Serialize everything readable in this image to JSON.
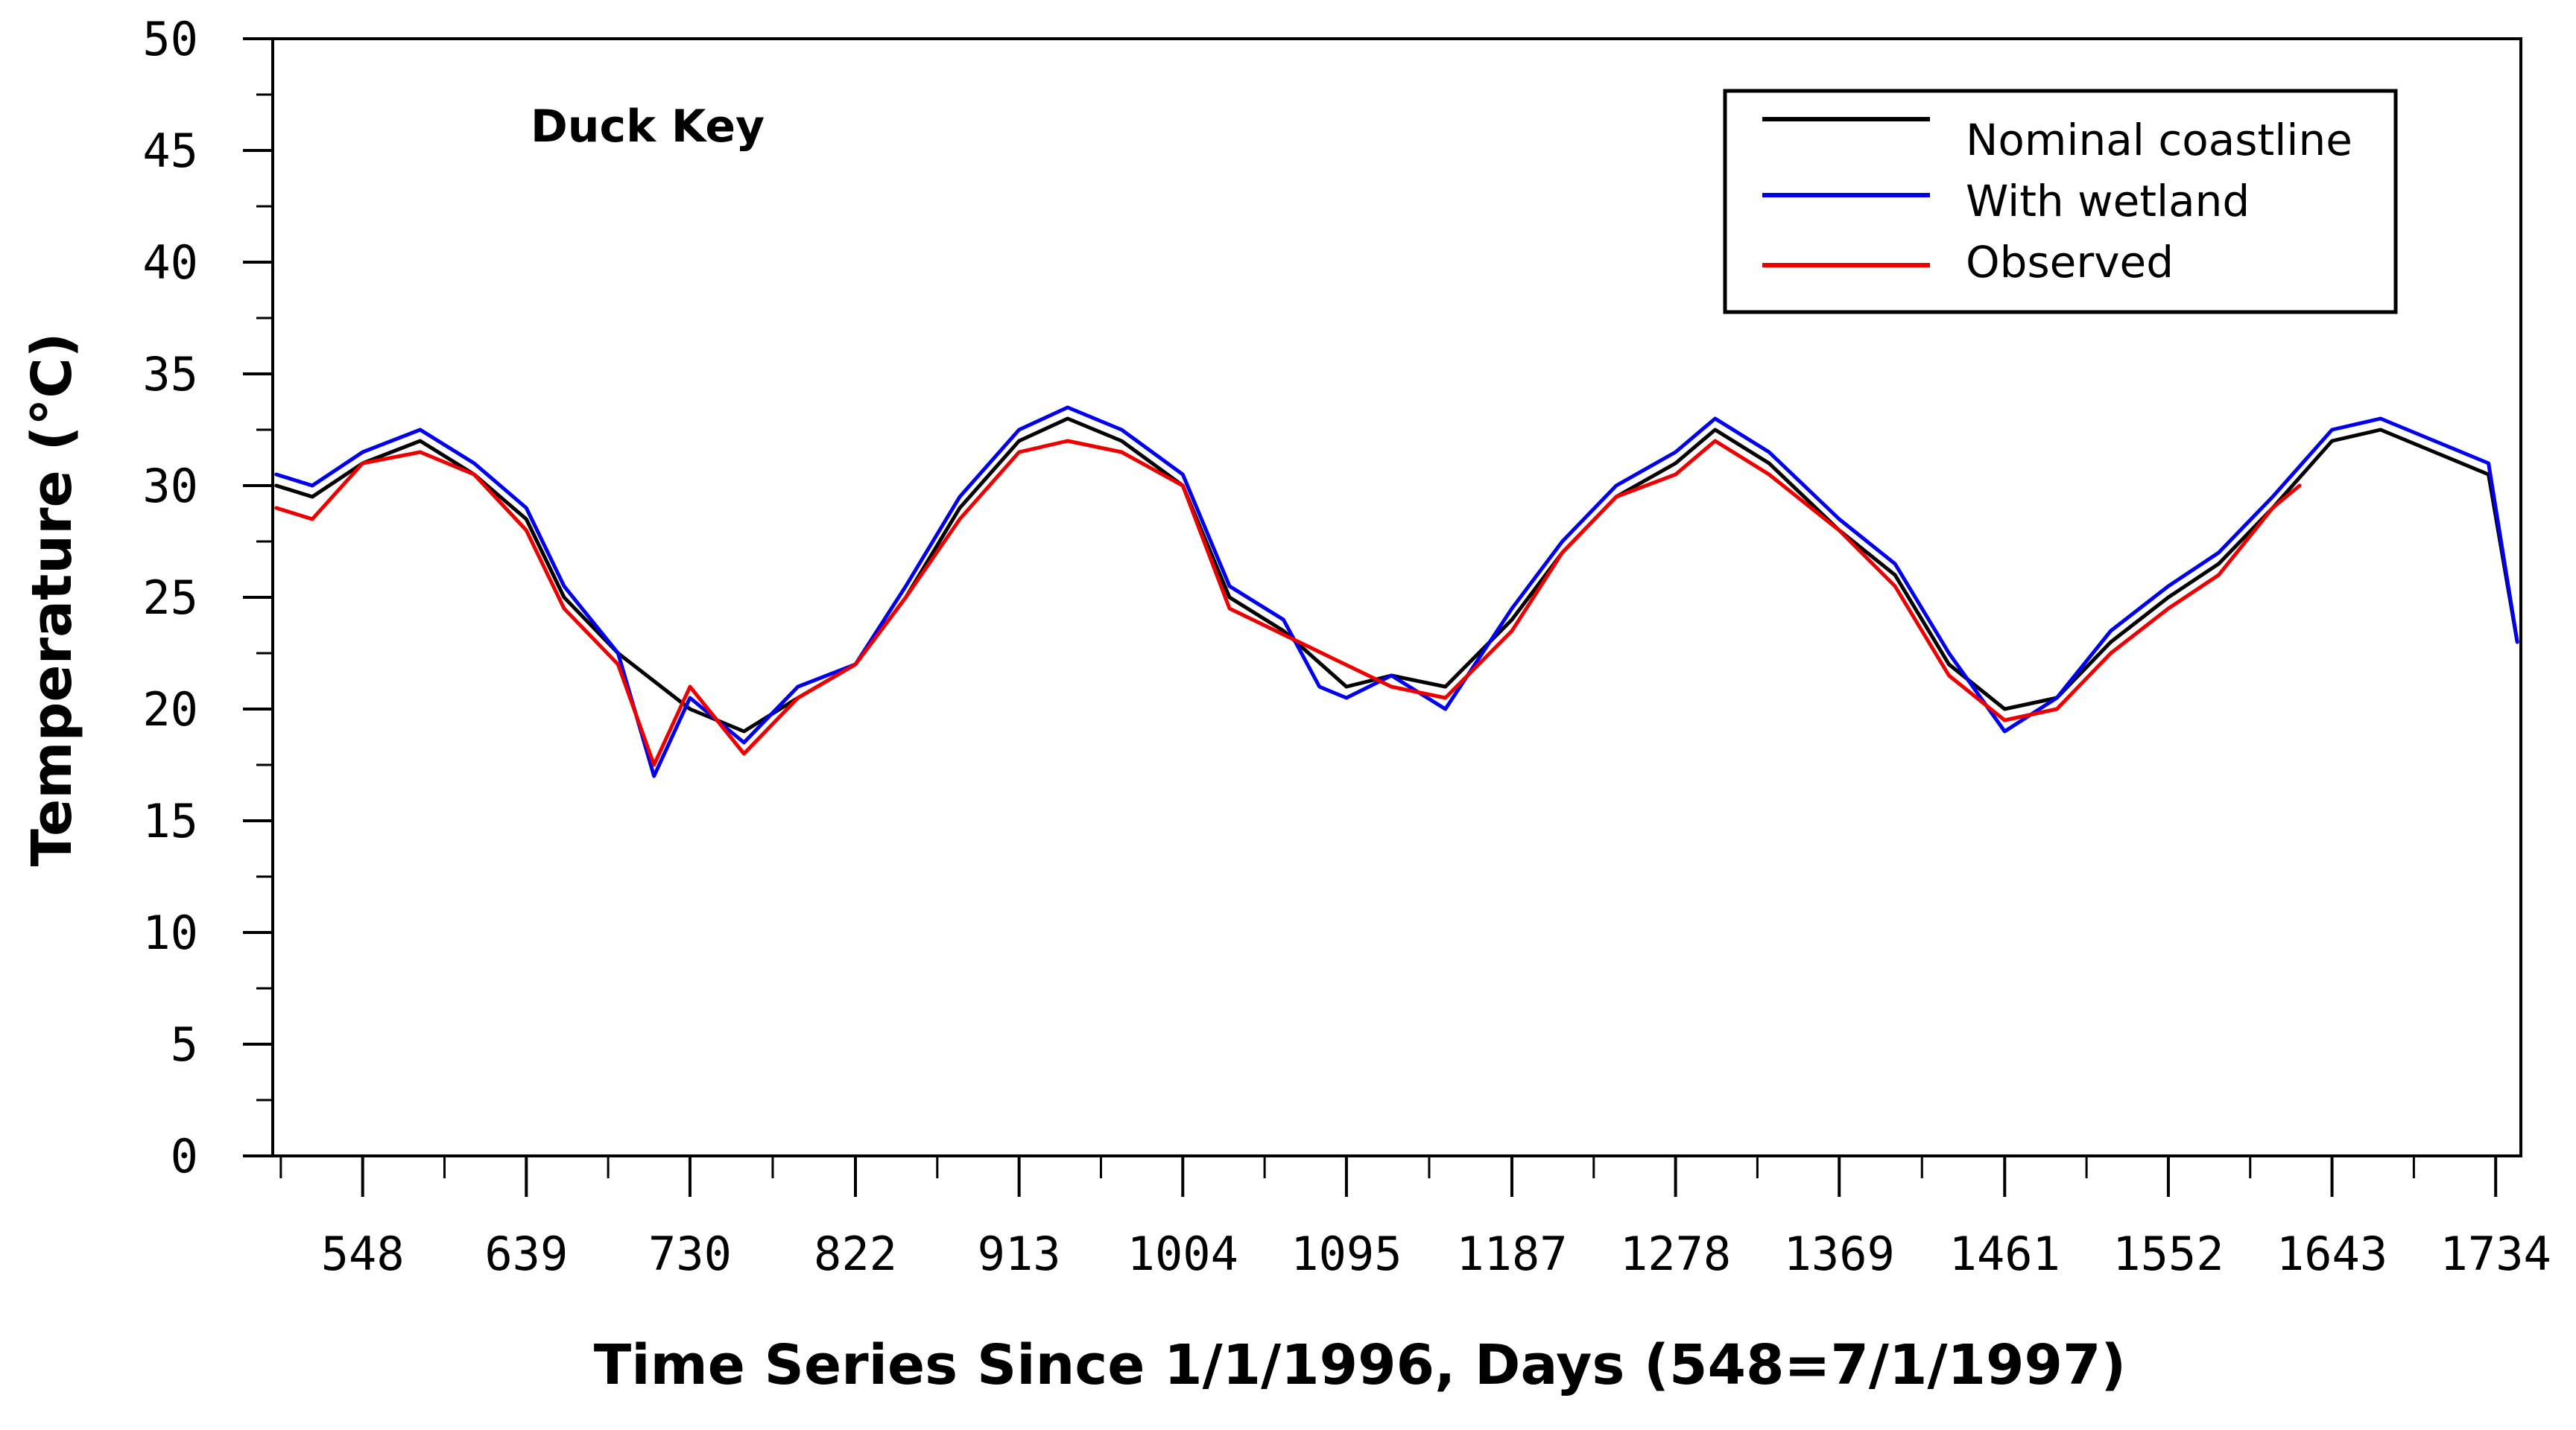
{
  "chart_data": {
    "type": "line",
    "title": "Duck Key",
    "xlabel": "Time Series Since 1/1/1996, Days (548=7/1/1997)",
    "ylabel": "Temperature (°C)",
    "xlim": [
      498,
      1748
    ],
    "ylim": [
      0,
      50
    ],
    "xticks": [
      548,
      639,
      730,
      822,
      913,
      1004,
      1095,
      1187,
      1278,
      1369,
      1461,
      1552,
      1643,
      1734
    ],
    "xtick_labels": [
      "548",
      "639",
      "730",
      "822",
      "913",
      "1004",
      "1095",
      "1187",
      "1278",
      "1369",
      "1461",
      "1552",
      "1643",
      "1734"
    ],
    "yticks": [
      0,
      5,
      10,
      15,
      20,
      25,
      30,
      35,
      40,
      45,
      50
    ],
    "ytick_labels": [
      "0",
      "5",
      "10",
      "15",
      "20",
      "25",
      "30",
      "35",
      "40",
      "45",
      "50"
    ],
    "grid": false,
    "legend_position": "top-right",
    "series": [
      {
        "name": "Nominal coastline",
        "color": "#000000",
        "x": [
          500,
          520,
          548,
          580,
          610,
          639,
          660,
          690,
          730,
          760,
          790,
          822,
          850,
          880,
          913,
          940,
          970,
          1004,
          1030,
          1060,
          1095,
          1120,
          1150,
          1187,
          1215,
          1245,
          1278,
          1300,
          1330,
          1369,
          1400,
          1430,
          1461,
          1490,
          1520,
          1552,
          1580,
          1610,
          1643,
          1670,
          1700,
          1730,
          1746
        ],
        "y": [
          30,
          29.5,
          31,
          32,
          30.5,
          28.5,
          25,
          22.5,
          20,
          19,
          20.5,
          22,
          25,
          29,
          32,
          33,
          32,
          30,
          25,
          23.5,
          21,
          21.5,
          21,
          24,
          27,
          29.5,
          31,
          32.5,
          31,
          28,
          26,
          22,
          20,
          20.5,
          23,
          25,
          26.5,
          29,
          32,
          32.5,
          31.5,
          30.5,
          23
        ]
      },
      {
        "name": "With wetland",
        "color": "#0000ee",
        "x": [
          500,
          520,
          548,
          580,
          610,
          639,
          660,
          690,
          710,
          730,
          760,
          790,
          822,
          850,
          880,
          913,
          940,
          970,
          1004,
          1030,
          1060,
          1080,
          1095,
          1120,
          1150,
          1187,
          1215,
          1245,
          1278,
          1300,
          1330,
          1369,
          1400,
          1430,
          1461,
          1490,
          1520,
          1552,
          1580,
          1610,
          1643,
          1670,
          1700,
          1730,
          1746
        ],
        "y": [
          30.5,
          30,
          31.5,
          32.5,
          31,
          29,
          25.5,
          22.5,
          17,
          20.5,
          18.5,
          21,
          22,
          25.5,
          29.5,
          32.5,
          33.5,
          32.5,
          30.5,
          25.5,
          24,
          21,
          20.5,
          21.5,
          20,
          24.5,
          27.5,
          30,
          31.5,
          33,
          31.5,
          28.5,
          26.5,
          22.5,
          19,
          20.5,
          23.5,
          25.5,
          27,
          29.5,
          32.5,
          33,
          32,
          31,
          23
        ]
      },
      {
        "name": "Observed",
        "color": "#ee0000",
        "x": [
          500,
          520,
          548,
          580,
          610,
          639,
          660,
          690,
          710,
          730,
          760,
          790,
          822,
          850,
          880,
          913,
          940,
          970,
          1004,
          1030,
          1120,
          1150,
          1187,
          1215,
          1245,
          1278,
          1300,
          1330,
          1369,
          1400,
          1430,
          1461,
          1490,
          1520,
          1552,
          1580,
          1610,
          1625
        ],
        "y": [
          29,
          28.5,
          31,
          31.5,
          30.5,
          28,
          24.5,
          22,
          17.5,
          21,
          18,
          20.5,
          22,
          25,
          28.5,
          31.5,
          32,
          31.5,
          30,
          24.5,
          21,
          20.5,
          23.5,
          27,
          29.5,
          30.5,
          32,
          30.5,
          28,
          25.5,
          21.5,
          19.5,
          20,
          22.5,
          24.5,
          26,
          29,
          30
        ]
      }
    ]
  }
}
